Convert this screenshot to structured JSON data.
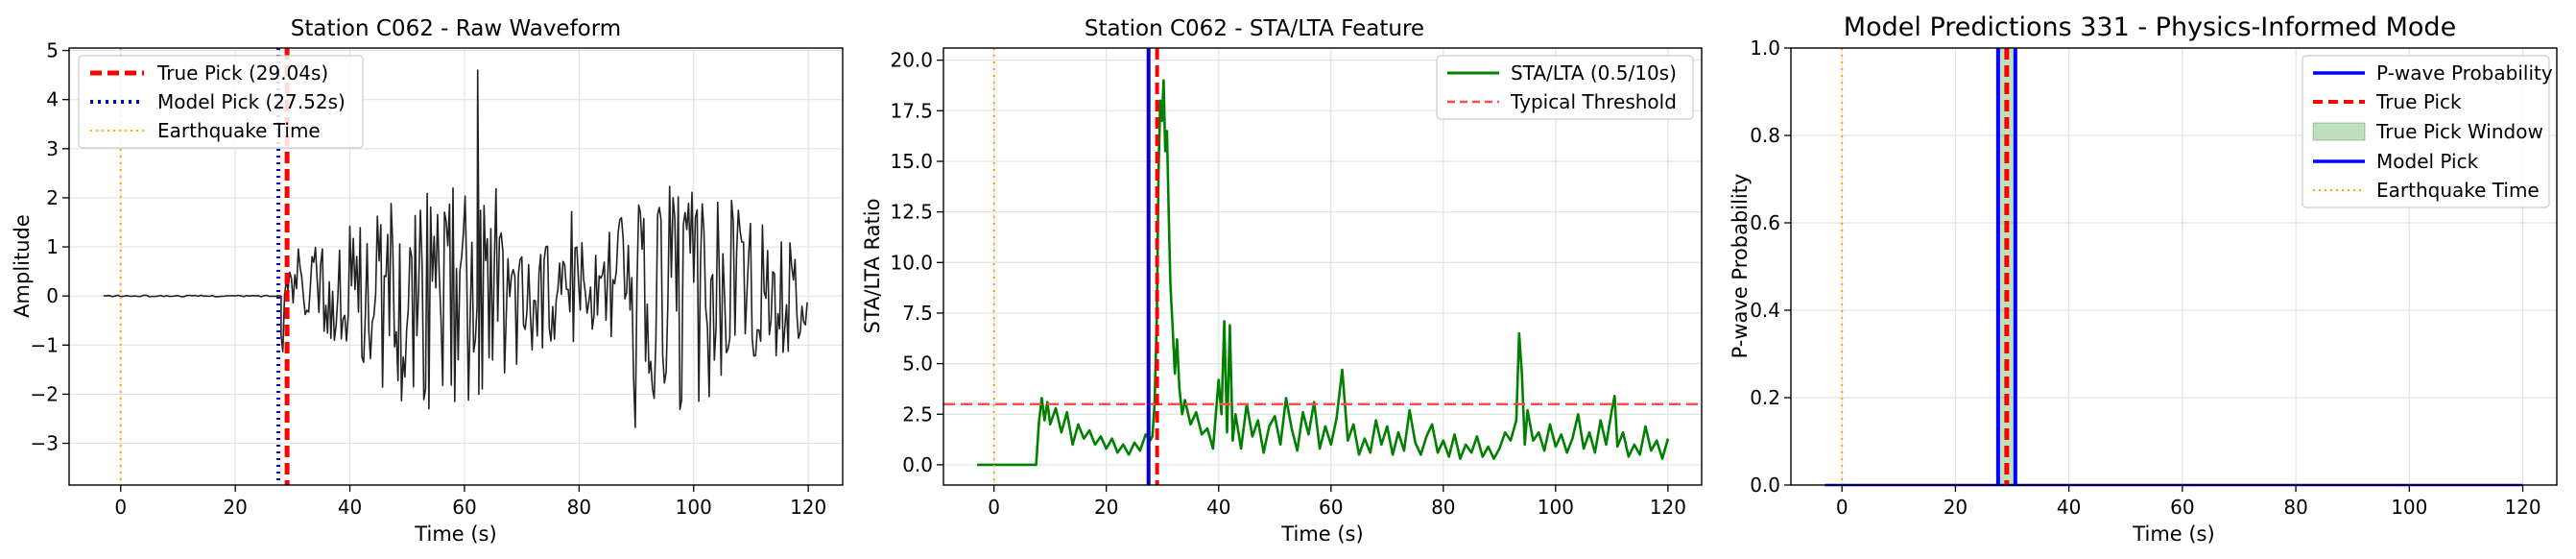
{
  "chart_data": [
    {
      "type": "line",
      "title": "Station C062 - Raw Waveform",
      "xlabel": "Time (s)",
      "ylabel": "Amplitude",
      "xlim": [
        -9,
        126
      ],
      "ylim": [
        -3.85,
        5.05
      ],
      "xticks": [
        0,
        20,
        40,
        60,
        80,
        100,
        120
      ],
      "yticks": [
        -3,
        -2,
        -1,
        0,
        1,
        2,
        3,
        4,
        5
      ],
      "xtick_labels": [
        "0",
        "20",
        "40",
        "60",
        "80",
        "100",
        "120"
      ],
      "ytick_labels": [
        "−3",
        "−2",
        "−1",
        "0",
        "1",
        "2",
        "3",
        "4",
        "5"
      ],
      "grid": true,
      "legend_position": "top-left",
      "series": [
        {
          "name": "",
          "color": "#222222",
          "kind": "waveform",
          "x_start": -3,
          "x_end": 120,
          "onset": 28.0,
          "seed": 62
        }
      ],
      "vlines": [
        {
          "name": "True Pick (29.04s)",
          "x": 29.04,
          "color": "#ff0000",
          "style": "dashed",
          "width": 5
        },
        {
          "name": "Model Pick (27.52s)",
          "x": 27.52,
          "color": "#0000cc",
          "style": "dotted",
          "width": 4
        },
        {
          "name": "Earthquake Time",
          "x": 0,
          "color": "#ffa500",
          "style": "dotted",
          "width": 2
        }
      ],
      "hlines": [],
      "spans": [],
      "legend": [
        "True Pick (29.04s)",
        "Model Pick (27.52s)",
        "Earthquake Time"
      ]
    },
    {
      "type": "line",
      "title": "Station C062 - STA/LTA Feature",
      "xlabel": "Time (s)",
      "ylabel": "STA/LTA Ratio",
      "xlim": [
        -9,
        126
      ],
      "ylim": [
        -1.0,
        20.6
      ],
      "xticks": [
        0,
        20,
        40,
        60,
        80,
        100,
        120
      ],
      "yticks": [
        0,
        2.5,
        5,
        7.5,
        10,
        12.5,
        15,
        17.5,
        20
      ],
      "xtick_labels": [
        "0",
        "20",
        "40",
        "60",
        "80",
        "100",
        "120"
      ],
      "ytick_labels": [
        "0.0",
        "2.5",
        "5.0",
        "7.5",
        "10.0",
        "12.5",
        "15.0",
        "17.5",
        "20.0"
      ],
      "grid": true,
      "legend_position": "top-right",
      "series": [
        {
          "name": "STA/LTA (0.5/10s)",
          "color": "#008000",
          "kind": "points",
          "points": [
            [
              -3,
              0
            ],
            [
              0,
              0
            ],
            [
              4,
              0
            ],
            [
              7.5,
              0
            ],
            [
              8,
              2.1
            ],
            [
              8.5,
              3.3
            ],
            [
              9,
              2.2
            ],
            [
              9.5,
              3.1
            ],
            [
              10,
              2.0
            ],
            [
              11,
              2.8
            ],
            [
              12,
              1.6
            ],
            [
              13,
              2.6
            ],
            [
              14,
              1.0
            ],
            [
              15,
              2.0
            ],
            [
              16,
              1.3
            ],
            [
              17,
              1.7
            ],
            [
              18,
              1.0
            ],
            [
              19,
              1.4
            ],
            [
              20,
              0.8
            ],
            [
              21,
              1.3
            ],
            [
              22,
              0.6
            ],
            [
              23,
              1.0
            ],
            [
              24,
              0.5
            ],
            [
              25,
              1.1
            ],
            [
              26,
              0.7
            ],
            [
              27,
              1.5
            ],
            [
              27.8,
              1.2
            ],
            [
              28.2,
              1.4
            ],
            [
              28.6,
              3.0
            ],
            [
              29,
              7.5
            ],
            [
              29.3,
              14.5
            ],
            [
              29.6,
              18.0
            ],
            [
              29.9,
              17.0
            ],
            [
              30.2,
              19.0
            ],
            [
              30.5,
              15.5
            ],
            [
              30.8,
              16.5
            ],
            [
              31.1,
              12.5
            ],
            [
              31.4,
              9.0
            ],
            [
              31.8,
              6.8
            ],
            [
              32.2,
              4.5
            ],
            [
              32.6,
              6.2
            ],
            [
              33,
              3.8
            ],
            [
              33.5,
              2.5
            ],
            [
              34,
              3.2
            ],
            [
              35,
              2.0
            ],
            [
              36,
              2.6
            ],
            [
              37,
              1.5
            ],
            [
              38,
              1.8
            ],
            [
              39,
              0.8
            ],
            [
              40,
              4.2
            ],
            [
              40.5,
              2.5
            ],
            [
              41,
              7.1
            ],
            [
              41.5,
              1.6
            ],
            [
              42,
              6.9
            ],
            [
              42.5,
              1.2
            ],
            [
              43,
              2.5
            ],
            [
              44,
              0.8
            ],
            [
              45,
              3.0
            ],
            [
              46,
              1.4
            ],
            [
              47,
              2.2
            ],
            [
              48,
              0.6
            ],
            [
              49,
              1.9
            ],
            [
              50,
              2.4
            ],
            [
              51,
              1.0
            ],
            [
              52,
              3.3
            ],
            [
              53,
              1.8
            ],
            [
              54,
              0.7
            ],
            [
              55,
              2.6
            ],
            [
              56,
              1.5
            ],
            [
              57,
              3.1
            ],
            [
              58,
              0.8
            ],
            [
              59,
              1.9
            ],
            [
              60,
              1.0
            ],
            [
              61,
              2.3
            ],
            [
              62,
              4.7
            ],
            [
              63,
              1.2
            ],
            [
              64,
              2.0
            ],
            [
              65,
              0.5
            ],
            [
              66,
              1.3
            ],
            [
              67,
              0.6
            ],
            [
              68,
              2.2
            ],
            [
              69,
              1.0
            ],
            [
              70,
              1.9
            ],
            [
              71,
              0.5
            ],
            [
              72,
              1.6
            ],
            [
              73,
              0.7
            ],
            [
              74,
              2.7
            ],
            [
              75,
              1.1
            ],
            [
              76,
              0.5
            ],
            [
              77,
              1.4
            ],
            [
              78,
              2.0
            ],
            [
              79,
              0.6
            ],
            [
              80,
              1.2
            ],
            [
              81,
              0.4
            ],
            [
              82,
              1.5
            ],
            [
              83,
              0.3
            ],
            [
              84,
              1.0
            ],
            [
              85,
              0.6
            ],
            [
              86,
              1.4
            ],
            [
              87,
              0.4
            ],
            [
              88,
              0.9
            ],
            [
              89,
              0.3
            ],
            [
              90,
              0.8
            ],
            [
              91,
              1.6
            ],
            [
              92,
              1.2
            ],
            [
              93,
              2.2
            ],
            [
              93.5,
              6.5
            ],
            [
              94,
              4.5
            ],
            [
              94.5,
              1.0
            ],
            [
              95,
              2.7
            ],
            [
              96,
              1.2
            ],
            [
              97,
              1.6
            ],
            [
              98,
              0.7
            ],
            [
              99,
              2.0
            ],
            [
              100,
              0.9
            ],
            [
              101,
              1.5
            ],
            [
              102,
              0.6
            ],
            [
              103,
              1.3
            ],
            [
              104,
              2.5
            ],
            [
              105,
              0.8
            ],
            [
              106,
              1.6
            ],
            [
              107,
              0.6
            ],
            [
              108,
              2.2
            ],
            [
              109,
              1.0
            ],
            [
              110,
              2.7
            ],
            [
              110.5,
              3.4
            ],
            [
              111,
              0.9
            ],
            [
              112,
              1.6
            ],
            [
              113,
              0.4
            ],
            [
              114,
              1.0
            ],
            [
              115,
              0.5
            ],
            [
              116,
              1.9
            ],
            [
              117,
              0.7
            ],
            [
              118,
              1.2
            ],
            [
              119,
              0.3
            ],
            [
              120,
              1.3
            ]
          ]
        }
      ],
      "vlines": [
        {
          "name": "",
          "x": 27.52,
          "color": "#0000cc",
          "style": "solid",
          "width": 4
        },
        {
          "name": "",
          "x": 29.04,
          "color": "#ff0000",
          "style": "dashed",
          "width": 4
        },
        {
          "name": "",
          "x": 0,
          "color": "#ffa500",
          "style": "dotted",
          "width": 2
        }
      ],
      "hlines": [
        {
          "name": "Typical Threshold",
          "y": 3.0,
          "color": "#ff4d4d",
          "style": "dashed",
          "width": 2.5
        }
      ],
      "spans": [],
      "legend": [
        "STA/LTA (0.5/10s)",
        "Typical Threshold"
      ]
    },
    {
      "type": "line",
      "title": "Model Predictions 331 - Physics-Informed Mode",
      "xlabel": "Time (s)",
      "ylabel": "P-wave Probability",
      "xlim": [
        -9,
        126
      ],
      "ylim": [
        0,
        1.0
      ],
      "xticks": [
        0,
        20,
        40,
        60,
        80,
        100,
        120
      ],
      "yticks": [
        0,
        0.2,
        0.4,
        0.6,
        0.8,
        1.0
      ],
      "xtick_labels": [
        "0",
        "20",
        "40",
        "60",
        "80",
        "100",
        "120"
      ],
      "ytick_labels": [
        "0.0",
        "0.2",
        "0.4",
        "0.6",
        "0.8",
        "1.0"
      ],
      "grid": true,
      "legend_position": "top-right",
      "series": [
        {
          "name": "P-wave Probability",
          "color": "#0000ff",
          "kind": "points",
          "points": [
            [
              -3,
              0
            ],
            [
              120,
              0
            ]
          ]
        }
      ],
      "vlines": [
        {
          "name": "True Pick",
          "x": 29.04,
          "color": "#ff0000",
          "style": "dashed",
          "width": 5
        },
        {
          "name": "Model Pick",
          "x": 27.52,
          "color": "#0000ff",
          "style": "solid",
          "width": 4
        },
        {
          "name": "",
          "x": 30.56,
          "color": "#0000ff",
          "style": "solid",
          "width": 4
        },
        {
          "name": "Earthquake Time",
          "x": 0,
          "color": "#ffa500",
          "style": "dotted",
          "width": 2
        }
      ],
      "hlines": [],
      "spans": [
        {
          "name": "True Pick Window",
          "x0": 27.54,
          "x1": 30.54,
          "color": "#008000",
          "opacity": 0.25
        }
      ],
      "legend": [
        "P-wave Probability",
        "True Pick",
        "True Pick Window",
        "Model Pick",
        "Earthquake Time"
      ]
    }
  ]
}
